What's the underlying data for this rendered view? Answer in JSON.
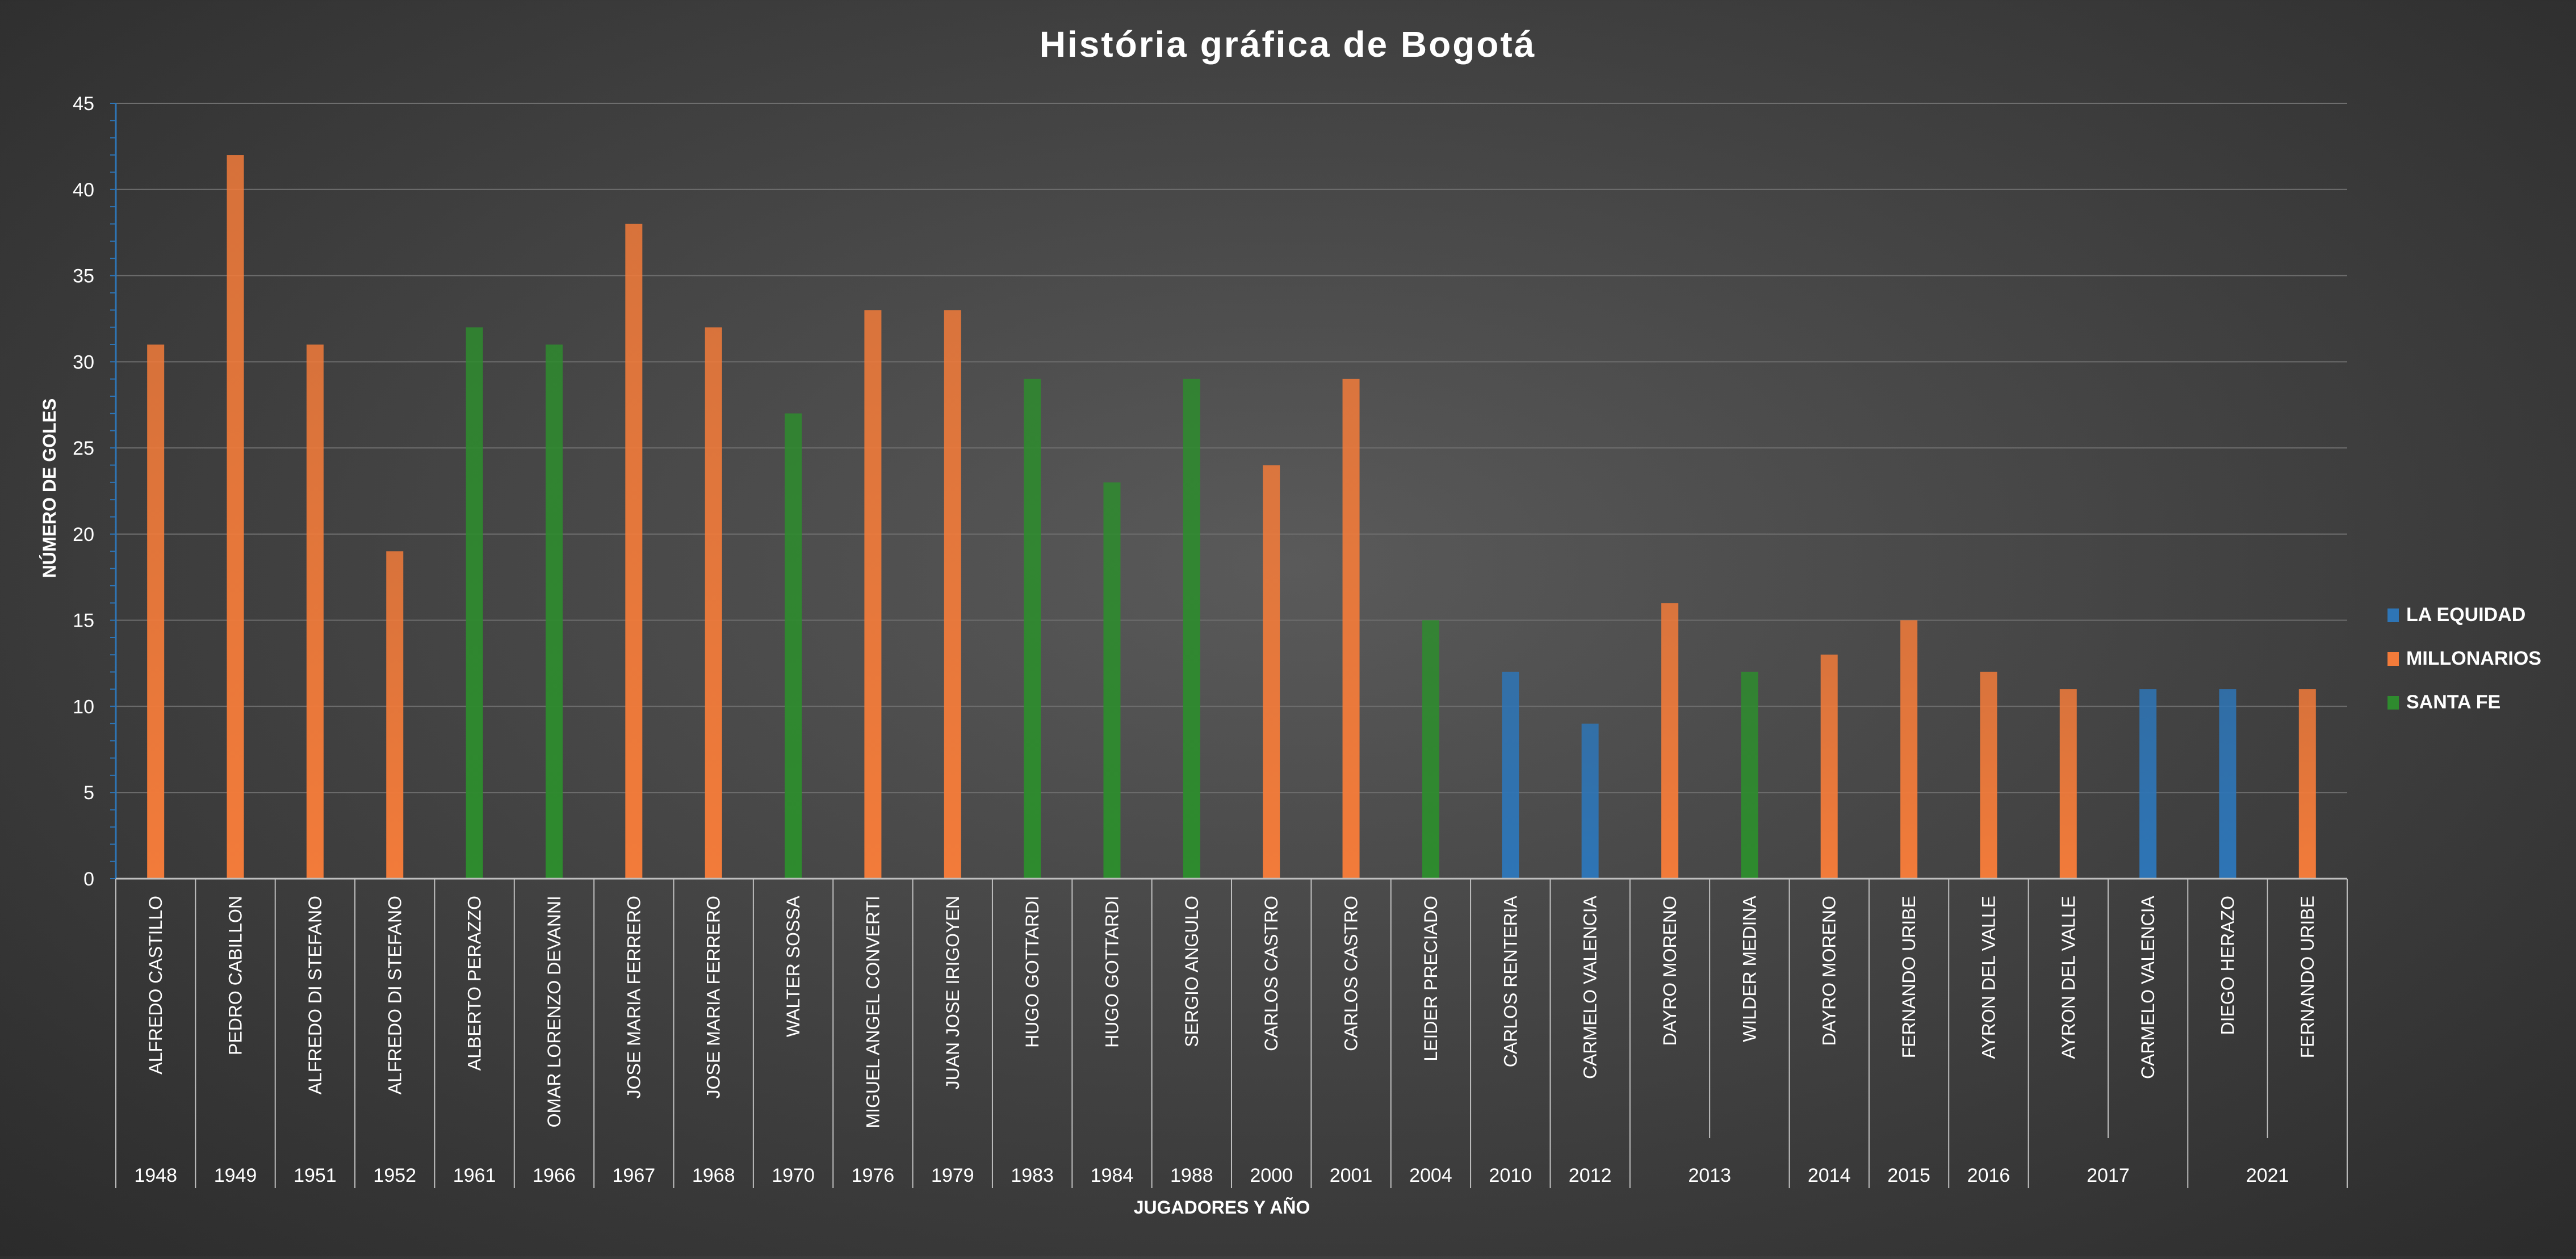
{
  "chart_data": {
    "type": "bar",
    "title": "História gráfica de Bogotá",
    "xlabel": "JUGADORES Y AÑO",
    "ylabel": "NÚMERO DE GOLES",
    "ylim": [
      0,
      45
    ],
    "yticks": [
      0,
      5,
      10,
      15,
      20,
      25,
      30,
      35,
      40,
      45
    ],
    "grid": true,
    "legend_position": "right",
    "series": [
      {
        "name": "LA EQUIDAD",
        "color": "#2e75b6"
      },
      {
        "name": "MILLONARIOS",
        "color": "#f27b3a"
      },
      {
        "name": "SANTA FE",
        "color": "#2e8b2e"
      }
    ],
    "categories": [
      "ALFREDO CASTILLO",
      "PEDRO CABILLON",
      "ALFREDO DI STEFANO",
      "ALFREDO DI STEFANO",
      "ALBERTO PERAZZO",
      "OMAR LORENZO DEVANNI",
      "JOSE MARIA FERRERO",
      "JOSE MARIA FERRERO",
      "WALTER SOSSA",
      "MIGUEL ANGEL CONVERTI",
      "JUAN JOSE IRIGOYEN",
      "HUGO GOTTARDI",
      "HUGO GOTTARDI",
      "SERGIO ANGULO",
      "CARLOS CASTRO",
      "CARLOS CASTRO",
      "LEIDER PRECIADO",
      "CARLOS RENTERIA",
      "CARMELO VALENCIA",
      "DAYRO MORENO",
      "WILDER MEDINA",
      "DAYRO MORENO",
      "FERNANDO URIBE",
      "AYRON DEL VALLE",
      "AYRON DEL VALLE",
      "CARMELO VALENCIA",
      "DIEGO HERAZO",
      "FERNANDO URIBE"
    ],
    "values": [
      31,
      42,
      31,
      19,
      32,
      31,
      38,
      32,
      27,
      33,
      33,
      29,
      23,
      29,
      24,
      29,
      15,
      12,
      9,
      16,
      12,
      13,
      15,
      12,
      11,
      11,
      11,
      11
    ],
    "team": [
      "MILLONARIOS",
      "MILLONARIOS",
      "MILLONARIOS",
      "MILLONARIOS",
      "SANTA FE",
      "SANTA FE",
      "MILLONARIOS",
      "MILLONARIOS",
      "SANTA FE",
      "MILLONARIOS",
      "MILLONARIOS",
      "SANTA FE",
      "SANTA FE",
      "SANTA FE",
      "MILLONARIOS",
      "MILLONARIOS",
      "SANTA FE",
      "LA EQUIDAD",
      "LA EQUIDAD",
      "MILLONARIOS",
      "SANTA FE",
      "MILLONARIOS",
      "MILLONARIOS",
      "MILLONARIOS",
      "MILLONARIOS",
      "LA EQUIDAD",
      "LA EQUIDAD",
      "MILLONARIOS"
    ],
    "years": [
      {
        "label": "1948",
        "count": 1
      },
      {
        "label": "1949",
        "count": 1
      },
      {
        "label": "1951",
        "count": 1
      },
      {
        "label": "1952",
        "count": 1
      },
      {
        "label": "1961",
        "count": 1
      },
      {
        "label": "1966",
        "count": 1
      },
      {
        "label": "1967",
        "count": 1
      },
      {
        "label": "1968",
        "count": 1
      },
      {
        "label": "1970",
        "count": 1
      },
      {
        "label": "1976",
        "count": 1
      },
      {
        "label": "1979",
        "count": 1
      },
      {
        "label": "1983",
        "count": 1
      },
      {
        "label": "1984",
        "count": 1
      },
      {
        "label": "1988",
        "count": 1
      },
      {
        "label": "2000",
        "count": 1
      },
      {
        "label": "2001",
        "count": 1
      },
      {
        "label": "2004",
        "count": 1
      },
      {
        "label": "2010",
        "count": 1
      },
      {
        "label": "2012",
        "count": 1
      },
      {
        "label": "2013",
        "count": 2
      },
      {
        "label": "2014",
        "count": 1
      },
      {
        "label": "2015",
        "count": 1
      },
      {
        "label": "2016",
        "count": 1
      },
      {
        "label": "2017",
        "count": 2
      },
      {
        "label": "2021",
        "count": 2
      }
    ]
  }
}
